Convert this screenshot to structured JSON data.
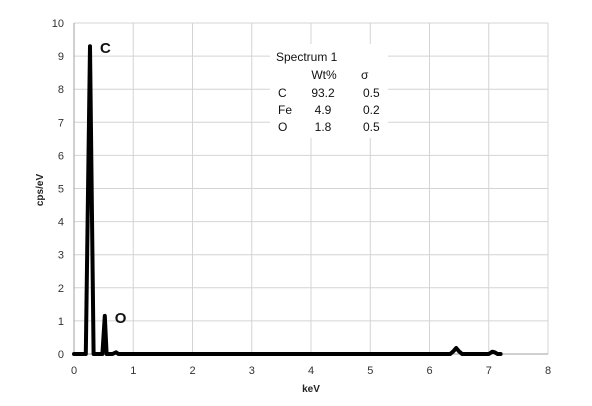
{
  "chart_data": {
    "type": "line",
    "xlabel": "keV",
    "ylabel": "cps/eV",
    "xlim": [
      0,
      8
    ],
    "ylim": [
      0,
      10
    ],
    "x_ticks": [
      "0",
      "1",
      "2",
      "3",
      "4",
      "5",
      "6",
      "7",
      "8"
    ],
    "y_ticks": [
      "0",
      "1",
      "2",
      "3",
      "4",
      "5",
      "6",
      "7",
      "8",
      "9",
      "10"
    ],
    "grid": true,
    "series": [
      {
        "x": [
          0.0,
          0.1,
          0.15,
          0.2,
          0.27,
          0.33,
          0.38,
          0.45,
          0.48,
          0.52,
          0.55,
          0.65,
          0.71,
          0.75,
          1.0,
          6.2,
          6.35,
          6.4,
          6.45,
          6.5,
          6.55,
          6.7,
          6.9,
          7.0,
          7.06,
          7.1,
          7.15,
          7.2
        ],
        "y": [
          0.0,
          0.0,
          0.0,
          0.0,
          9.3,
          0.0,
          0.0,
          0.0,
          0.0,
          1.15,
          0.0,
          0.0,
          0.05,
          0.0,
          0.0,
          0.0,
          0.0,
          0.08,
          0.18,
          0.08,
          0.0,
          0.0,
          0.0,
          0.0,
          0.07,
          0.05,
          0.0,
          0.0
        ]
      }
    ],
    "peak_labels": [
      {
        "text": "C",
        "x": 0.27,
        "y": 9.3
      },
      {
        "text": "O",
        "x": 0.52,
        "y": 1.15
      }
    ],
    "annotation": {
      "title": "Spectrum 1",
      "headers": [
        "",
        "Wt%",
        "σ"
      ],
      "rows": [
        [
          "C",
          "93.2",
          "0.5"
        ],
        [
          "Fe",
          "4.9",
          "0.2"
        ],
        [
          "O",
          "1.8",
          "0.5"
        ]
      ]
    }
  }
}
